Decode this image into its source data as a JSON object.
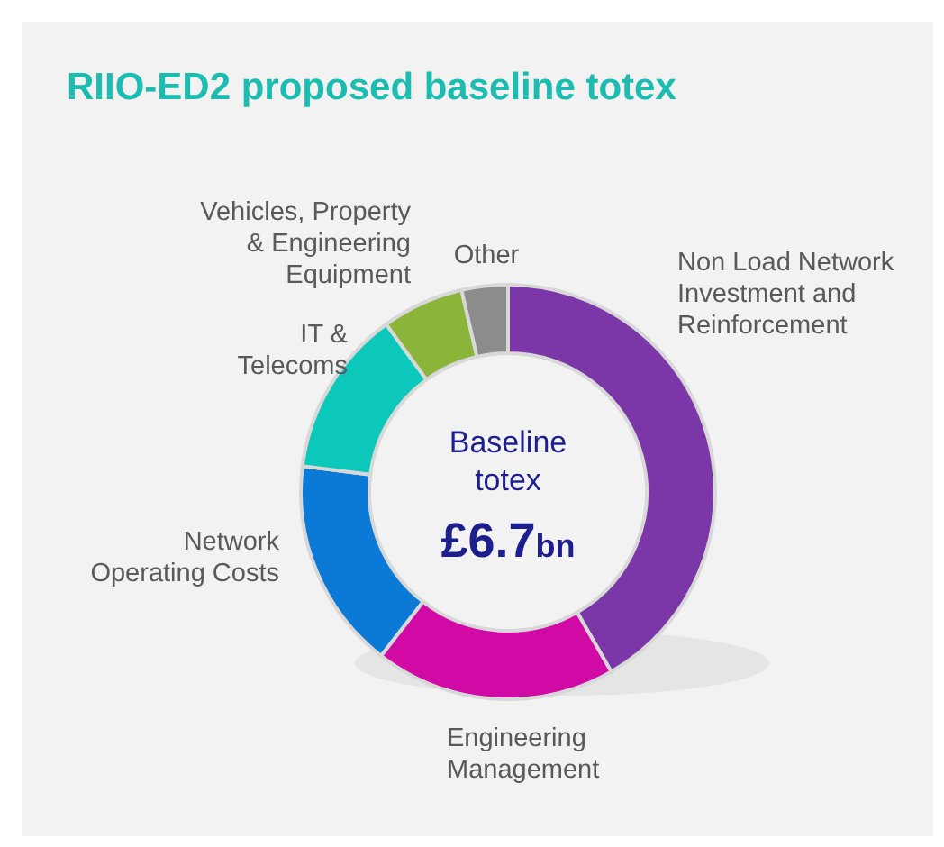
{
  "chart_data": {
    "type": "donut",
    "title": "RIIO-ED2 proposed baseline totex",
    "categories": [
      "Non Load Network Investment and Reinforcement",
      "Engineering Management",
      "Network Operating Costs",
      "IT & Telecoms",
      "Vehicles, Property & Engineering Equipment",
      "Other"
    ],
    "values": [
      41.7,
      18.8,
      16.5,
      13,
      6.4,
      3.6
    ],
    "colors": [
      "#7b36a8",
      "#d10aa6",
      "#0b79d6",
      "#0cc8ba",
      "#8ab43a",
      "#8c8c8c"
    ],
    "annotations": [
      "Baseline totex",
      "£6.7bn"
    ]
  }
}
